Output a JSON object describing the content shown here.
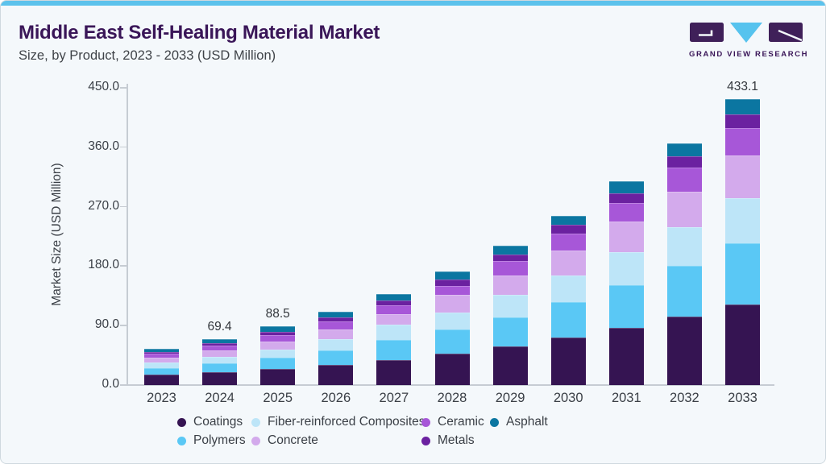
{
  "header": {
    "title": "Middle East Self-Healing Material Market",
    "subtitle": "Size, by Product, 2023 - 2033 (USD Million)",
    "logo_text": "GRAND VIEW RESEARCH"
  },
  "colors": {
    "accent_strip": "#5cc2ec",
    "title_text": "#3a1658",
    "card_background": "#f4f8fb",
    "card_border": "#cfd9df",
    "axis_line": "#c6ccd3",
    "axis_text": "#3a3f46",
    "logo_dark_purple": "#3f2059",
    "logo_light_blue": "#56c3ee"
  },
  "chart_data": {
    "type": "bar",
    "stacked": true,
    "title": "Middle East Self-Healing Material Market Size, by Product, 2023 - 2033 (USD Million)",
    "xlabel": "",
    "ylabel": "Market Size (USD Million)",
    "ylim": [
      0,
      450
    ],
    "grid": false,
    "yticks": [
      "0.0",
      "90.0",
      "180.0",
      "270.0",
      "360.0",
      "450.0"
    ],
    "categories": [
      "2023",
      "2024",
      "2025",
      "2026",
      "2027",
      "2028",
      "2029",
      "2030",
      "2031",
      "2032",
      "2033"
    ],
    "bar_labels": [
      "",
      "69.4",
      "88.5",
      "",
      "",
      "",
      "",
      "",
      "",
      "",
      "433.1"
    ],
    "totals": [
      55.0,
      69.4,
      88.5,
      111.0,
      138.0,
      172.0,
      211.0,
      256.0,
      308.0,
      365.5,
      433.1
    ],
    "series": [
      {
        "name": "Coatings",
        "color": "#351452",
        "values": [
          15.5,
          19.5,
          24.0,
          30.0,
          38.0,
          47.5,
          59.0,
          72.0,
          86.5,
          103.5,
          121.4
        ]
      },
      {
        "name": "Polymers",
        "color": "#5ac8f5",
        "values": [
          10.0,
          13.0,
          17.0,
          22.0,
          30.0,
          36.5,
          43.5,
          54.0,
          65.0,
          77.0,
          93.1
        ]
      },
      {
        "name": "Fiber-reinforced Composites",
        "color": "#bde5f8",
        "values": [
          8.2,
          10.4,
          12.8,
          17.0,
          23.0,
          26.0,
          34.0,
          39.5,
          49.5,
          58.0,
          68.5
        ]
      },
      {
        "name": "Concrete",
        "color": "#d3aaec",
        "values": [
          7.3,
          9.3,
          12.0,
          15.0,
          16.0,
          26.5,
          29.5,
          38.5,
          46.0,
          54.0,
          64.8
        ]
      },
      {
        "name": "Ceramic",
        "color": "#a757d8",
        "values": [
          6.5,
          8.0,
          10.0,
          12.0,
          14.0,
          14.0,
          22.0,
          25.5,
          28.5,
          36.5,
          41.8
        ]
      },
      {
        "name": "Metals",
        "color": "#6b21a0",
        "values": [
          3.0,
          3.5,
          5.0,
          6.0,
          6.5,
          9.5,
          10.0,
          13.0,
          15.0,
          17.0,
          19.7
        ]
      },
      {
        "name": "Asphalt",
        "color": "#0b76a1",
        "values": [
          4.5,
          5.7,
          7.7,
          9.0,
          10.5,
          12.0,
          13.0,
          13.5,
          17.5,
          19.5,
          23.8
        ]
      }
    ],
    "legend": {
      "position": "bottom",
      "rows": [
        [
          "Coatings",
          "Fiber-reinforced Composites",
          "Ceramic",
          "Asphalt"
        ],
        [
          "Polymers",
          "Concrete",
          "Metals"
        ]
      ]
    }
  }
}
